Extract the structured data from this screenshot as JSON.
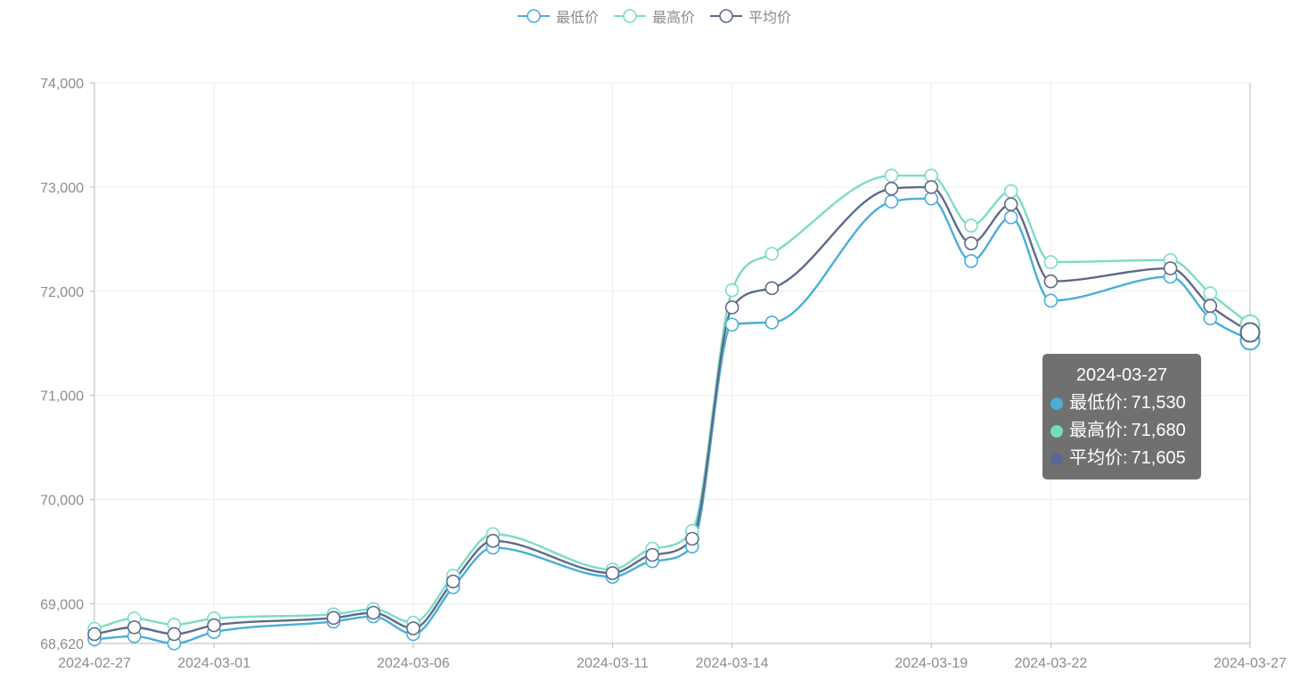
{
  "legend": {
    "items": [
      {
        "label": "最低价",
        "color": "#4aaed6"
      },
      {
        "label": "最高价",
        "color": "#7bdcc4"
      },
      {
        "label": "平均价",
        "color": "#5f6a8a"
      }
    ]
  },
  "tooltip": {
    "title": "2024-03-27",
    "rows": [
      {
        "label": "最低价",
        "value": "71,530",
        "dot_color": "#4aaed6"
      },
      {
        "label": "最高价",
        "value": "71,680",
        "dot_color": "#6fe0b8"
      },
      {
        "label": "平均价",
        "value": "71,605",
        "dot_color": "#5a6699"
      }
    ]
  },
  "chart_data": {
    "type": "line",
    "x": [
      "2024-02-27",
      "2024-02-28",
      "2024-02-29",
      "2024-03-01",
      "2024-03-04",
      "2024-03-05",
      "2024-03-06",
      "2024-03-07",
      "2024-03-08",
      "2024-03-11",
      "2024-03-12",
      "2024-03-13",
      "2024-03-14",
      "2024-03-15",
      "2024-03-18",
      "2024-03-19",
      "2024-03-20",
      "2024-03-21",
      "2024-03-22",
      "2024-03-25",
      "2024-03-26",
      "2024-03-27"
    ],
    "x_tick_labels": [
      "2024-02-27",
      "2024-03-01",
      "2024-03-06",
      "2024-03-11",
      "2024-03-14",
      "2024-03-19",
      "2024-03-22",
      "2024-03-27"
    ],
    "y_tick_labels": [
      "68,620",
      "69,000",
      "70,000",
      "71,000",
      "72,000",
      "73,000",
      "74,000"
    ],
    "ylim": [
      68620,
      74000
    ],
    "series": [
      {
        "name": "最低价",
        "color": "#4aaed6",
        "values": [
          68660,
          68690,
          68620,
          68730,
          68830,
          68880,
          68710,
          69160,
          69540,
          69260,
          69410,
          69550,
          71680,
          71700,
          72860,
          72890,
          72290,
          72710,
          71910,
          72140,
          71740,
          71530
        ]
      },
      {
        "name": "最高价",
        "color": "#7bdcc4",
        "values": [
          68760,
          68860,
          68800,
          68860,
          68900,
          68950,
          68820,
          69270,
          69670,
          69330,
          69530,
          69700,
          72010,
          72360,
          73110,
          73110,
          72630,
          72960,
          72280,
          72300,
          71980,
          71680
        ]
      },
      {
        "name": "平均价",
        "color": "#5f6a8a",
        "values": [
          68710,
          68775,
          68710,
          68795,
          68865,
          68915,
          68765,
          69215,
          69605,
          69295,
          69470,
          69625,
          71845,
          72030,
          72985,
          73000,
          72460,
          72835,
          72095,
          72220,
          71860,
          71605
        ]
      }
    ],
    "highlight_index": 21,
    "grid": true,
    "legend_position": "top-center"
  }
}
